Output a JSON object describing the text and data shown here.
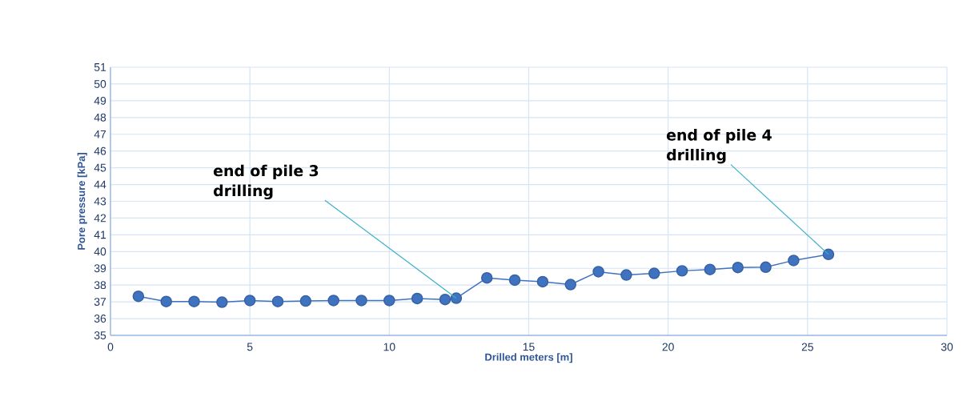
{
  "chart_data": {
    "type": "line",
    "xlabel": "Drilled meters [m]",
    "ylabel": "Pore pressure [kPa]",
    "x": [
      1,
      2,
      3,
      4,
      5,
      6,
      7,
      8,
      9,
      10,
      11,
      12,
      12.4,
      13.5,
      14.5,
      15.5,
      16.5,
      17.5,
      18.5,
      19.5,
      20.5,
      21.5,
      22.5,
      23.5,
      24.5,
      25.75
    ],
    "series": [
      {
        "color": "#3f73c0",
        "values": [
          37.33,
          37.02,
          37.02,
          36.98,
          37.08,
          37.02,
          37.05,
          37.08,
          37.08,
          37.08,
          37.2,
          37.14,
          37.22,
          38.43,
          38.3,
          38.2,
          38.03,
          38.8,
          38.6,
          38.7,
          38.85,
          38.93,
          39.05,
          39.07,
          39.47,
          39.83
        ]
      }
    ],
    "xlim": [
      0,
      30
    ],
    "ylim": [
      35,
      51
    ],
    "xticks": [
      0,
      5,
      10,
      15,
      20,
      25,
      30
    ],
    "yticks": [
      35,
      36,
      37,
      38,
      39,
      40,
      41,
      42,
      43,
      44,
      45,
      46,
      47,
      48,
      49,
      50,
      51
    ],
    "grid": true,
    "marker": "circle",
    "line_style": "solid",
    "annotations": [
      {
        "text": "end of pile 3 drilling",
        "x": 12.4,
        "y": 37.22
      },
      {
        "text": "end of pile 4 drilling",
        "x": 25.75,
        "y": 39.83
      }
    ]
  }
}
